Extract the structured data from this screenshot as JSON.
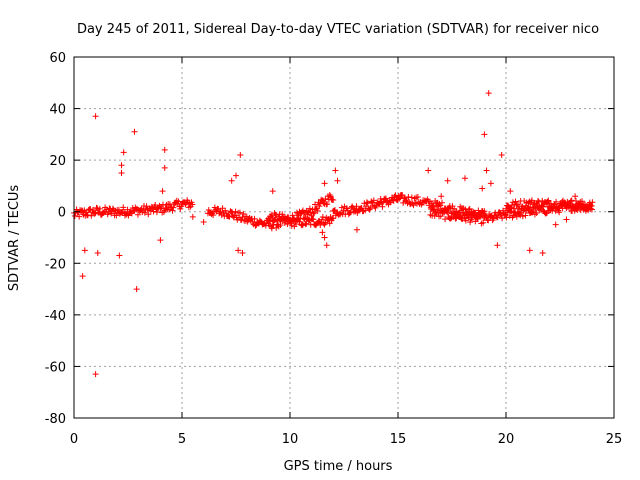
{
  "chart_data": {
    "type": "scatter",
    "title": "Day 245 of 2011, Sidereal Day-to-day VTEC variation (SDTVAR) for receiver nico",
    "xlabel": "GPS time / hours",
    "ylabel": "SDTVAR / TECUs",
    "xlim": [
      0,
      25
    ],
    "ylim": [
      -80,
      60
    ],
    "x_ticks": [
      0,
      5,
      10,
      15,
      20,
      25
    ],
    "y_ticks": [
      -80,
      -60,
      -40,
      -20,
      0,
      20,
      40,
      60
    ],
    "x_tick_labels": [
      "0",
      "5",
      "10",
      "15",
      "20",
      "25"
    ],
    "y_tick_labels": [
      "-80",
      "-60",
      "-40",
      "-20",
      "0",
      "20",
      "40",
      "60"
    ],
    "grid": true,
    "marker": "+",
    "colors": {
      "series": "#ff0000",
      "axis": "#000000",
      "grid": "#a0a0a0"
    },
    "series": [
      {
        "name": "SDTVAR",
        "description": "dense band of points following the curves below, plus scattered outliers",
        "band_segments": [
          {
            "x": [
              0.0,
              1.0,
              2.0,
              3.0,
              4.0,
              5.0,
              5.5
            ],
            "y": [
              -1,
              0,
              0,
              0.5,
              1,
              3,
              3
            ]
          },
          {
            "x": [
              6.2,
              7.0,
              8.0,
              9.0,
              10.0,
              11.0,
              12.0
            ],
            "y": [
              0,
              0,
              -3,
              -5,
              -4,
              -4,
              -3
            ]
          },
          {
            "x": [
              9.0,
              10.0,
              11.0,
              11.6,
              12.0
            ],
            "y": [
              -2,
              -3,
              0,
              4,
              6
            ]
          },
          {
            "x": [
              12.0,
              13.0,
              14.0,
              15.0,
              16.0,
              17.0,
              18.0,
              19.0
            ],
            "y": [
              0,
              1,
              3,
              5,
              4,
              2,
              0,
              -1
            ]
          },
          {
            "x": [
              16.5,
              17.0,
              18.0,
              19.0,
              20.0,
              21.0,
              22.0,
              23.0,
              24.0
            ],
            "y": [
              0,
              -1,
              -2,
              -3,
              -1,
              0,
              1,
              2,
              2
            ]
          },
          {
            "x": [
              20.0,
              21.0,
              22.0,
              23.0,
              24.0
            ],
            "y": [
              2,
              3,
              3,
              3,
              2
            ]
          }
        ],
        "outliers_x": [
          1.0,
          1.0,
          0.4,
          0.5,
          1.1,
          2.8,
          2.9,
          2.3,
          2.2,
          2.1,
          2.2,
          4.2,
          4.2,
          4.0,
          4.1,
          7.3,
          7.5,
          7.7,
          7.6,
          7.8,
          9.2,
          11.6,
          11.7,
          12.1,
          12.2,
          11.6,
          11.5,
          13.1,
          14.2,
          16.4,
          17.0,
          17.3,
          18.1,
          19.2,
          19.0,
          19.3,
          19.6,
          19.8,
          20.2,
          21.1,
          21.7,
          22.3,
          22.8,
          23.2,
          19.1,
          18.9,
          6.0,
          5.5
        ],
        "outliers_y": [
          37,
          -63,
          -25,
          -15,
          -16,
          31,
          -30,
          23,
          18,
          -17,
          15,
          24,
          17,
          -11,
          8,
          12,
          14,
          22,
          -15,
          -16,
          8,
          11,
          -13,
          16,
          12,
          -10,
          -8,
          -7,
          5,
          16,
          6,
          12,
          13,
          46,
          30,
          11,
          -13,
          22,
          8,
          -15,
          -16,
          -5,
          -3,
          6,
          16,
          9,
          -4,
          -2
        ]
      }
    ]
  }
}
